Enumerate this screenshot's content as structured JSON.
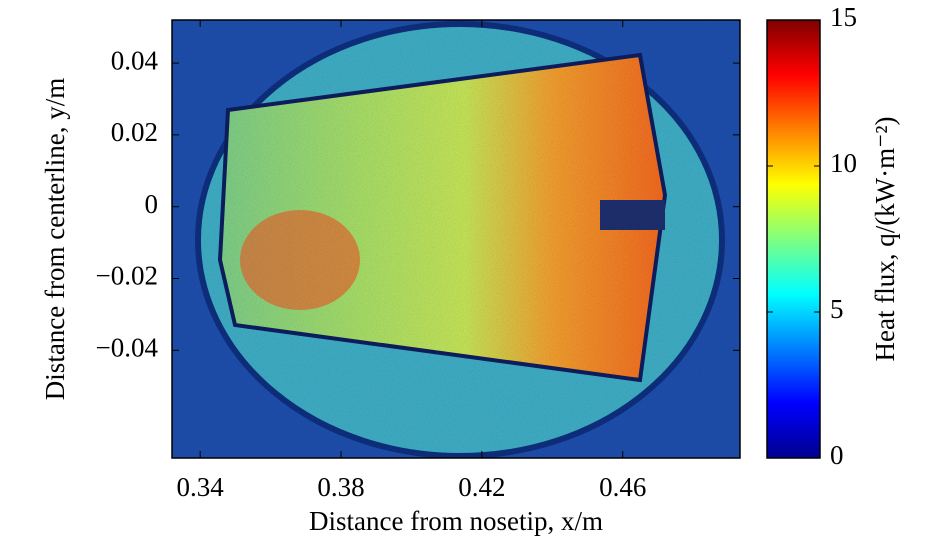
{
  "chart_data": {
    "type": "heatmap",
    "xlabel": "Distance from nosetip, x/m",
    "ylabel": "Distance from centerline, y/m",
    "colorbar_label": "Heat flux, q/(kW·m⁻²)",
    "xlim": [
      0.332,
      0.4933
    ],
    "ylim": [
      -0.07,
      0.052
    ],
    "xticks": [
      0.34,
      0.38,
      0.42,
      0.46
    ],
    "yticks": [
      {
        "value": 0.04,
        "label": "0.04"
      },
      0.02,
      0,
      {
        "value": -0.02,
        "label": "−0.02"
      },
      {
        "value": -0.04,
        "label": "−0.04"
      }
    ],
    "clim": [
      0,
      15
    ],
    "cticks": [
      0,
      5,
      10,
      15
    ],
    "colormap": "jet"
  }
}
